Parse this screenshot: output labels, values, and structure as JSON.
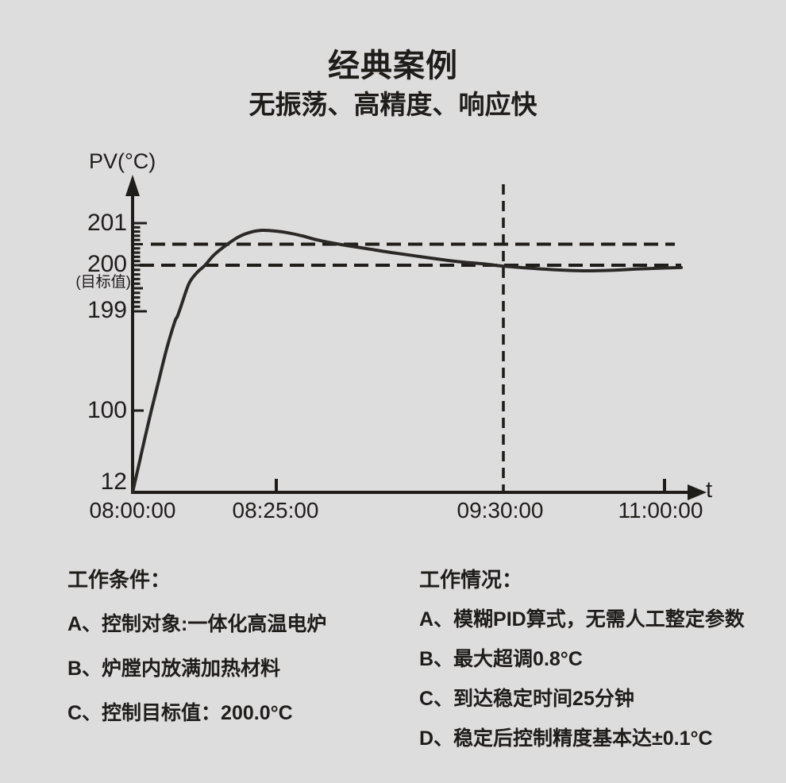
{
  "page": {
    "colors": {
      "background": "#dedddd",
      "ink": "#1f1d1a",
      "curve": "#2b2926"
    }
  },
  "title": "经典案例",
  "subtitle": "无振荡、高精度、响应快",
  "chart": {
    "y_axis_title": "PV(°C)",
    "x_axis_title": "t",
    "target_note": "(目标值)",
    "y_tick_labels": {
      "v201": "201",
      "v200": "200",
      "v199": "199",
      "v100": "100",
      "v12": "12"
    },
    "x_tick_labels": {
      "t0800": "08:00:00",
      "t0825": "08:25:00",
      "t0930": "09:30:00",
      "t1100": "11:00:00"
    }
  },
  "chart_data": {
    "type": "line",
    "xlabel": "t",
    "ylabel": "PV(°C)",
    "x_ticks": [
      {
        "minutes": 0,
        "label": "08:00:00",
        "tick_mark": false
      },
      {
        "minutes": 25,
        "label": "08:25:00",
        "tick_mark": true
      },
      {
        "minutes": 90,
        "label": "09:30:00",
        "tick_mark": false
      },
      {
        "minutes": 180,
        "label": "11:00:00",
        "tick_mark": true
      }
    ],
    "y_ticks": [
      12,
      100,
      199,
      200,
      201
    ],
    "fine_scale": {
      "from": 199,
      "to": 201,
      "step": 0.1
    },
    "target_value": 200.0,
    "target_note": "(目标值)",
    "reference_lines": [
      {
        "axis": "y",
        "value": 200.5,
        "style": "dashed"
      },
      {
        "axis": "y",
        "value": 200.0,
        "style": "dashed"
      },
      {
        "axis": "x",
        "minutes": 90,
        "label": "09:30:00",
        "style": "dashed"
      }
    ],
    "series": [
      {
        "name": "PV",
        "points": [
          [
            0,
            12
          ],
          [
            1.1,
            42
          ],
          [
            2.2,
            72
          ],
          [
            3.3,
            101
          ],
          [
            4.6,
            131
          ],
          [
            5.9,
            161
          ],
          [
            7.3,
            188
          ],
          [
            7.8,
            194
          ],
          [
            8.4,
            199.1
          ],
          [
            9.8,
            199.6
          ],
          [
            11.2,
            199.84
          ],
          [
            12.6,
            200.0
          ],
          [
            14.2,
            200.25
          ],
          [
            16.3,
            200.48
          ],
          [
            18.4,
            200.67
          ],
          [
            20.4,
            200.78
          ],
          [
            22.5,
            200.83
          ],
          [
            25,
            200.81
          ],
          [
            27.7,
            200.78
          ],
          [
            32.3,
            200.7
          ],
          [
            36.8,
            200.6
          ],
          [
            43.6,
            200.49
          ],
          [
            50.5,
            200.4
          ],
          [
            57.3,
            200.31
          ],
          [
            64.1,
            200.23
          ],
          [
            70.9,
            200.15
          ],
          [
            77.7,
            200.08
          ],
          [
            84.5,
            200.03
          ],
          [
            90,
            199.98
          ],
          [
            103.7,
            199.94
          ],
          [
            119.3,
            199.9
          ],
          [
            134.8,
            199.88
          ],
          [
            150.3,
            199.89
          ],
          [
            165.8,
            199.92
          ],
          [
            180,
            199.94
          ],
          [
            189.3,
            199.95
          ]
        ]
      }
    ]
  },
  "conditions": {
    "heading": "工作条件：",
    "items": [
      "A、控制对象:一体化高温电炉",
      "B、炉膛内放满加热材料",
      "C、控制目标值：200.0°C"
    ]
  },
  "results": {
    "heading": "工作情况：",
    "items": [
      "A、模糊PID算式，无需人工整定参数",
      "B、最大超调0.8°C",
      "C、到达稳定时间25分钟",
      "D、稳定后控制精度基本达±0.1°C"
    ]
  }
}
